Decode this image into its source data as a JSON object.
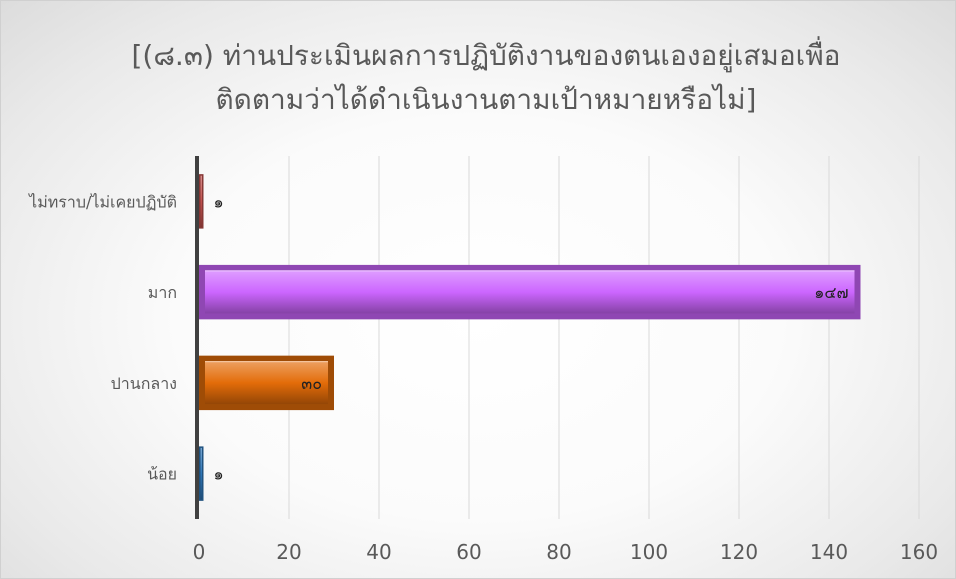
{
  "chart_data": {
    "type": "bar",
    "orientation": "horizontal",
    "title_lines": [
      "[(๘.๓)  ท่านประเมินผลการปฏิบัติงานของตนเองอยู่เสมอเพื่อ",
      "ติดตามว่าได้ดำเนินงานตามเป้าหมายหรือไม่]"
    ],
    "categories": [
      "น้อย",
      "ปานกลาง",
      "มาก",
      "ไม่ทราบ/ไม่เคยปฏิบัติ"
    ],
    "values": [
      1,
      30,
      147,
      1
    ],
    "data_labels": [
      "๑",
      "๓๐",
      "๑๔๗",
      "๑"
    ],
    "bar_colors": [
      "#2e75b6",
      "#e36c09",
      "#cc66ff",
      "#c0504d"
    ],
    "xlim": [
      0,
      160
    ],
    "xticks": [
      "0",
      "20",
      "40",
      "60",
      "80",
      "100",
      "120",
      "140",
      "160"
    ],
    "grid": true,
    "legend": "none"
  }
}
